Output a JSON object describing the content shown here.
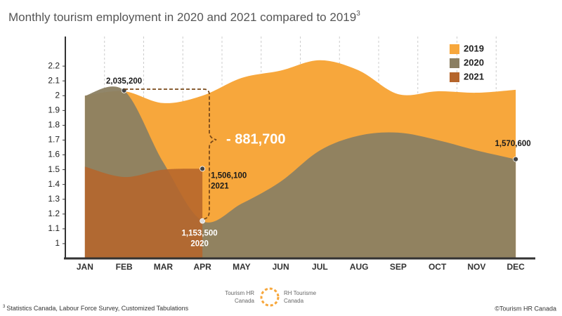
{
  "chart_data": {
    "type": "area",
    "title": "Monthly tourism employment in 2020 and 2021 compared to 2019",
    "title_superscript": "3",
    "categories": [
      "JAN",
      "FEB",
      "MAR",
      "APR",
      "MAY",
      "JUN",
      "JUL",
      "AUG",
      "SEP",
      "OCT",
      "NOV",
      "DEC"
    ],
    "series": [
      {
        "name": "2019",
        "color": "#f7a73c",
        "values": [
          2.0,
          2.03,
          1.95,
          2.0,
          2.12,
          2.17,
          2.24,
          2.17,
          2.01,
          2.03,
          2.02,
          2.04
        ]
      },
      {
        "name": "2020",
        "color": "#8b7f62",
        "values": [
          2.0,
          2.0352,
          1.55,
          1.1535,
          1.27,
          1.42,
          1.63,
          1.73,
          1.75,
          1.7,
          1.63,
          1.5706
        ],
        "value_labels": [
          null,
          "2,035,200",
          null,
          "1,153,500",
          null,
          null,
          null,
          null,
          null,
          null,
          null,
          "1,570,600"
        ]
      },
      {
        "name": "2021",
        "color": "#b5652b",
        "values": [
          1.52,
          1.45,
          1.5,
          1.5061,
          null,
          null,
          null,
          null,
          null,
          null,
          null,
          null
        ],
        "value_labels": [
          null,
          null,
          null,
          "1,506,100",
          null,
          null,
          null,
          null,
          null,
          null,
          null,
          null
        ]
      }
    ],
    "ylim": [
      0.9,
      2.4
    ],
    "yticks": [
      1,
      1.1,
      1.2,
      1.3,
      1.4,
      1.5,
      1.6,
      1.7,
      1.8,
      1.9,
      2,
      2.1,
      2.2
    ],
    "legend": "top-right",
    "annotation": "- 881,700",
    "footnote_marker": "3",
    "footnote": "Statistics Canada, Labour Force Survey, Customized Tabulations",
    "copyright": "©Tourism HR Canada",
    "logo_en": [
      "Tourism HR",
      "Canada"
    ],
    "logo_fr": [
      "RH Tourisme",
      "Canada"
    ]
  }
}
